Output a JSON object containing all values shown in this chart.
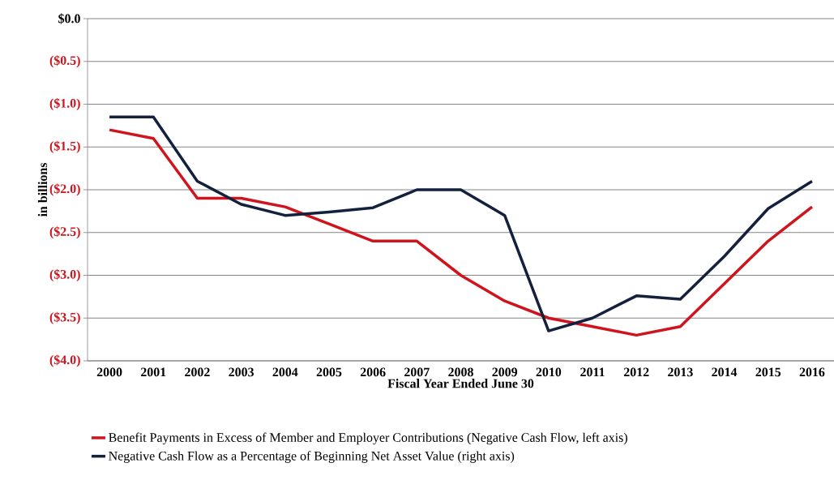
{
  "chart_data": {
    "type": "line",
    "xlabel": "Fiscal Year Ended June 30",
    "ylabel": "in billions",
    "categories": [
      "2000",
      "2001",
      "2002",
      "2003",
      "2004",
      "2005",
      "2006",
      "2007",
      "2008",
      "2009",
      "2010",
      "2011",
      "2012",
      "2013",
      "2014",
      "2015",
      "2016"
    ],
    "series": [
      {
        "name": "Benefit Payments in Excess of Member and Employer Contributions (Negative Cash Flow, left axis)",
        "color": "#d0141e",
        "values": [
          -1.3,
          -1.4,
          -2.1,
          -2.1,
          -2.2,
          -2.4,
          -2.6,
          -2.6,
          -3.0,
          -3.3,
          -3.5,
          -3.6,
          -3.7,
          -3.6,
          -3.1,
          -2.6,
          -2.2
        ]
      },
      {
        "name": "Negative Cash Flow as a Percentage of Beginning Net Asset Value (right axis)",
        "color": "#14213d",
        "values": [
          -1.15,
          -1.15,
          -1.9,
          -2.17,
          -2.3,
          -2.26,
          -2.21,
          -2.0,
          -2.0,
          -2.3,
          -3.65,
          -3.5,
          -3.24,
          -3.28,
          -2.78,
          -2.22,
          -1.9
        ]
      }
    ],
    "ylim": [
      -4.0,
      0.0
    ],
    "yticks": [
      {
        "value": 0.0,
        "label": "$0.0"
      },
      {
        "value": -0.5,
        "label": "($0.5)"
      },
      {
        "value": -1.0,
        "label": "($1.0)"
      },
      {
        "value": -1.5,
        "label": "($1.5)"
      },
      {
        "value": -2.0,
        "label": "($2.0)"
      },
      {
        "value": -2.5,
        "label": "($2.5)"
      },
      {
        "value": -3.0,
        "label": "($3.0)"
      },
      {
        "value": -3.5,
        "label": "($3.5)"
      },
      {
        "value": -4.0,
        "label": "($4.0)"
      }
    ],
    "grid": "y",
    "legend": "bottom",
    "line_style": "solid",
    "marker": "none"
  }
}
